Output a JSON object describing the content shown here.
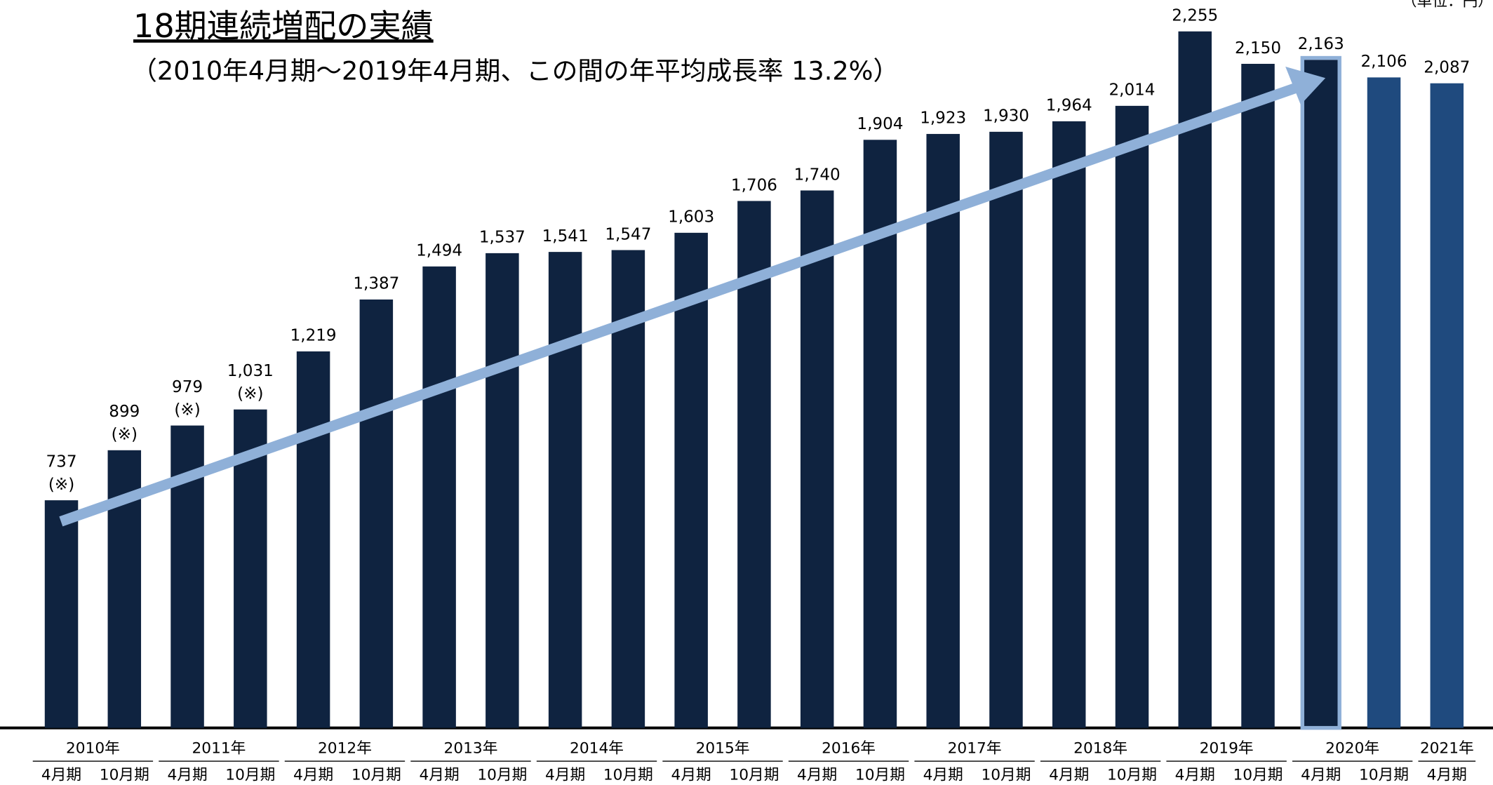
{
  "chart_data": {
    "type": "bar",
    "title": "18期連続増配の実績",
    "subtitle": "（2010年4月期～2019年4月期、この間の年平均成長率 13.2%）",
    "unit": "（単位：円）",
    "year_groups": [
      {
        "name": "2010年",
        "categories": [
          "4月期",
          "10月期"
        ]
      },
      {
        "name": "2011年",
        "categories": [
          "4月期",
          "10月期"
        ]
      },
      {
        "name": "2012年",
        "categories": [
          "4月期",
          "10月期"
        ]
      },
      {
        "name": "2013年",
        "categories": [
          "4月期",
          "10月期"
        ]
      },
      {
        "name": "2014年",
        "categories": [
          "4月期",
          "10月期"
        ]
      },
      {
        "name": "2015年",
        "categories": [
          "4月期",
          "10月期"
        ]
      },
      {
        "name": "2016年",
        "categories": [
          "4月期",
          "10月期"
        ]
      },
      {
        "name": "2017年",
        "categories": [
          "4月期",
          "10月期"
        ]
      },
      {
        "name": "2018年",
        "categories": [
          "4月期",
          "10月期"
        ]
      },
      {
        "name": "2019年",
        "categories": [
          "4月期",
          "10月期"
        ]
      },
      {
        "name": "2020年",
        "categories": [
          "4月期",
          "10月期"
        ]
      },
      {
        "name": "2021年",
        "categories": [
          "4月期"
        ]
      }
    ],
    "values": [
      737,
      899,
      979,
      1031,
      1219,
      1387,
      1494,
      1537,
      1541,
      1547,
      1603,
      1706,
      1740,
      1904,
      1923,
      1930,
      1964,
      2014,
      2255,
      2150,
      2163,
      2106,
      2087
    ],
    "value_labels": [
      "737",
      "899",
      "979",
      "1,031",
      "1,219",
      "1,387",
      "1,494",
      "1,537",
      "1,541",
      "1,547",
      "1,603",
      "1,706",
      "1,740",
      "1,904",
      "1,923",
      "1,930",
      "1,964",
      "2,014",
      "2,255",
      "2,150",
      "2,163",
      "2,106",
      "2,087"
    ],
    "value_notes": [
      "(※)",
      "(※)",
      "(※)",
      "(※)",
      null,
      null,
      null,
      null,
      null,
      null,
      null,
      null,
      null,
      null,
      null,
      null,
      null,
      null,
      null,
      null,
      null,
      null,
      null
    ],
    "colors": [
      "#0f2340",
      "#0f2340",
      "#0f2340",
      "#0f2340",
      "#0f2340",
      "#0f2340",
      "#0f2340",
      "#0f2340",
      "#0f2340",
      "#0f2340",
      "#0f2340",
      "#0f2340",
      "#0f2340",
      "#0f2340",
      "#0f2340",
      "#0f2340",
      "#0f2340",
      "#0f2340",
      "#0f2340",
      "#0f2340",
      "#0f2340",
      "#1f4a7e",
      "#1f4a7e"
    ],
    "highlight_index": 20,
    "highlight_color": "#8fb0d8",
    "ylim": [
      0,
      2255
    ]
  }
}
